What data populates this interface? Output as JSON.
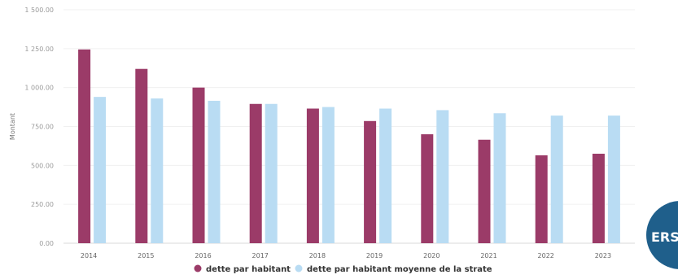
{
  "chart_data": {
    "type": "bar",
    "categories": [
      "2014",
      "2015",
      "2016",
      "2017",
      "2018",
      "2019",
      "2020",
      "2021",
      "2022",
      "2023"
    ],
    "series": [
      {
        "name": "dette par habitant",
        "color": "#9b3b68",
        "values": [
          1245,
          1120,
          1000,
          895,
          865,
          785,
          700,
          665,
          565,
          575
        ]
      },
      {
        "name": "dette par habitant moyenne de la strate",
        "color": "#b9dcf3",
        "values": [
          940,
          930,
          915,
          895,
          875,
          865,
          855,
          835,
          820,
          820
        ]
      }
    ],
    "ylabel": "Montant",
    "ylim": [
      0,
      1500
    ],
    "yticks": [
      0,
      250,
      500,
      750,
      1000,
      1250,
      1500
    ],
    "ytick_labels": [
      "0.00",
      "250.00",
      "500.00",
      "750.00",
      "1 000.00",
      "1 250.00",
      "1 500.00"
    ],
    "grid": true,
    "legend_position": "bottom-center"
  },
  "badge": {
    "text": "ERS",
    "color": "#1f5f8b"
  }
}
